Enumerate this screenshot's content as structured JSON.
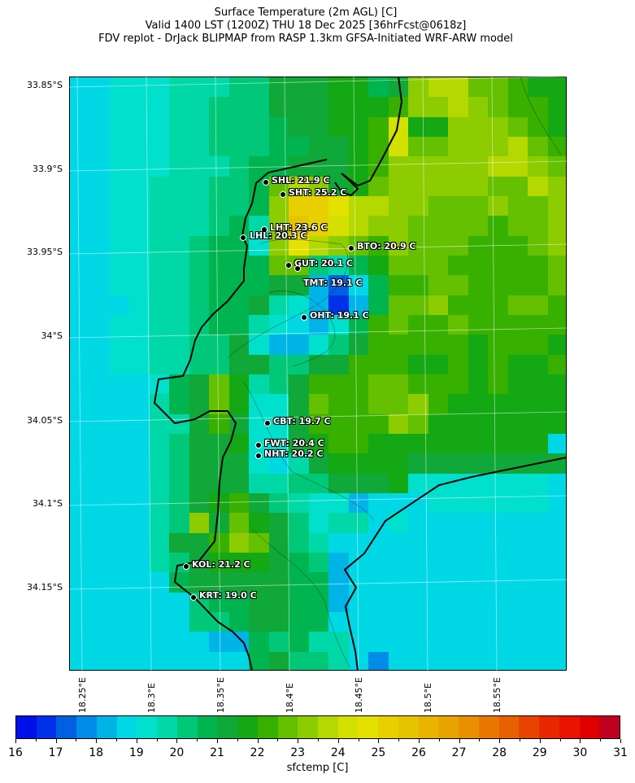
{
  "title": {
    "line1": "Surface Temperature (2m AGL) [C]",
    "line2": "Valid 1400 LST (1200Z) THU 18 Dec 2025 [36hrFcst@0618z]",
    "line3": "FDV replot - DrJack BLIPMAP from RASP 1.3km GFSA-Initiated WRF-ARW model"
  },
  "lat_labels": [
    "33.85°S",
    "33.9°S",
    "33.95°S",
    "34°S",
    "34.05°S",
    "34.1°S",
    "34.15°S"
  ],
  "lon_labels": [
    "18.25°E",
    "18.3°E",
    "18.35°E",
    "18.4°E",
    "18.45°E",
    "18.5°E",
    "18.55°E"
  ],
  "stations": [
    {
      "label": "SHL: 21.9 C"
    },
    {
      "label": "SHT: 25.2 C"
    },
    {
      "label": "LHT: 23.6 C"
    },
    {
      "label": "LHL: 20.3 C"
    },
    {
      "label": "BTO: 20.9 C"
    },
    {
      "label": "GUT: 20.1 C"
    },
    {
      "label": "TMT: 19.1 C"
    },
    {
      "label": "OHT: 19.1 C"
    },
    {
      "label": "CBT: 19.7 C"
    },
    {
      "label": "FWT: 20.4 C"
    },
    {
      "label": "NHT: 20.2 C"
    },
    {
      "label": "KOL: 21.2 C"
    },
    {
      "label": "KRT: 19.0 C"
    }
  ],
  "colorbar": {
    "label": "sfctemp [C]",
    "ticks": [
      "16",
      "17",
      "18",
      "19",
      "20",
      "21",
      "22",
      "23",
      "24",
      "25",
      "26",
      "27",
      "28",
      "29",
      "30",
      "31"
    ],
    "min": 16,
    "max": 31,
    "step": 0.5,
    "colors": [
      "#0010e8",
      "#0030e8",
      "#0060e0",
      "#008ce8",
      "#00b4e8",
      "#00d8e6",
      "#00e0cc",
      "#00d8a8",
      "#00c878",
      "#00b450",
      "#10a838",
      "#14a814",
      "#38b000",
      "#64c000",
      "#8ccc00",
      "#b4d800",
      "#d4e000",
      "#e4e000",
      "#e8d000",
      "#e8c400",
      "#e8b400",
      "#e8a400",
      "#e89000",
      "#e87800",
      "#e86000",
      "#e84400",
      "#e82800",
      "#e81400",
      "#e00000",
      "#c00020"
    ]
  },
  "sfctemp_grid": [
    [
      18.5,
      18.5,
      19,
      19,
      19,
      19.5,
      19.5,
      19.5,
      20,
      20,
      21,
      21,
      21,
      21.5,
      21.5,
      20.5,
      21,
      23,
      23.5,
      23.5,
      22.5,
      22.5,
      22,
      21.5,
      21.5
    ],
    [
      18.5,
      18.5,
      19,
      19,
      19,
      19.5,
      19.5,
      20,
      20,
      20,
      21,
      21,
      21,
      21.5,
      21.5,
      21.5,
      22,
      23,
      23,
      23.5,
      23,
      22.5,
      22,
      22,
      21.5
    ],
    [
      18.5,
      18.5,
      19,
      19,
      19,
      19.5,
      19.5,
      20,
      20,
      20,
      20.5,
      21,
      21,
      21.5,
      21.5,
      22,
      24,
      21.5,
      21.5,
      23,
      23,
      23,
      22.5,
      22,
      21.5
    ],
    [
      18.5,
      18.5,
      19,
      19,
      19,
      19.5,
      19.5,
      20,
      20,
      20,
      20.5,
      20.5,
      21,
      21,
      21.5,
      22,
      24,
      22.5,
      22.5,
      23,
      23,
      23,
      23.5,
      22.5,
      22
    ],
    [
      18.5,
      18.5,
      19,
      19,
      19,
      19.5,
      19.5,
      19.5,
      20,
      20.5,
      20.5,
      21,
      21,
      21,
      21.5,
      22,
      23,
      23,
      23,
      23,
      23,
      23.5,
      23.5,
      23,
      22.5
    ],
    [
      18.5,
      18.5,
      19,
      19,
      19.5,
      19.5,
      19.5,
      20,
      20,
      20.5,
      22.5,
      23.5,
      23,
      21,
      21.5,
      22.5,
      23,
      23,
      23,
      23,
      23,
      22.5,
      22.5,
      23.5,
      23
    ],
    [
      18.5,
      18.5,
      19,
      19,
      19.5,
      19.5,
      19.5,
      20,
      20,
      20.5,
      23,
      25,
      25,
      24.5,
      23.5,
      23.5,
      23,
      23,
      22.5,
      22.5,
      22.5,
      23,
      22.5,
      22.5,
      23
    ],
    [
      18.5,
      18.5,
      19,
      19,
      19.5,
      19.5,
      19.5,
      20,
      20.5,
      19.5,
      23,
      25.5,
      25,
      24,
      23.5,
      23,
      23,
      22.5,
      22.5,
      22.5,
      22.5,
      22,
      22.5,
      22.5,
      23
    ],
    [
      18.5,
      18.5,
      19,
      19,
      19.5,
      19.5,
      20,
      20.5,
      20.5,
      19,
      23,
      24.5,
      23.5,
      23,
      22.5,
      22,
      23,
      22.5,
      22.5,
      22.5,
      22,
      22,
      22,
      22.5,
      23
    ],
    [
      18.5,
      18.5,
      19,
      19,
      19.5,
      19.5,
      20,
      20.5,
      20.5,
      20.5,
      22.5,
      22.5,
      20,
      19.5,
      20.5,
      21.5,
      22.5,
      22.5,
      22.5,
      22,
      22,
      22,
      22,
      22,
      22.5
    ],
    [
      18.5,
      18.5,
      19,
      19,
      19.5,
      19.5,
      20,
      20.5,
      20.5,
      20.5,
      21,
      21,
      18,
      17,
      18.5,
      20.5,
      22,
      22,
      22.5,
      22.5,
      22,
      22,
      22,
      22,
      22.5
    ],
    [
      18.5,
      18.5,
      18.5,
      19,
      19.5,
      19.5,
      20,
      20.5,
      20.5,
      21,
      19.5,
      19,
      18,
      16.5,
      18,
      20.5,
      22.5,
      22.5,
      23,
      22,
      22,
      22,
      22.5,
      22.5,
      22
    ],
    [
      18.5,
      18.5,
      19,
      19,
      19.5,
      19.5,
      20,
      20.5,
      20.5,
      19.5,
      19,
      18.5,
      18,
      19,
      20.5,
      22,
      22.5,
      22,
      22,
      22.5,
      22,
      22,
      22,
      22,
      22
    ],
    [
      18.5,
      18.5,
      19,
      19,
      19.5,
      19.5,
      20,
      20,
      21,
      19,
      18,
      18,
      19,
      20,
      21,
      22,
      22,
      22,
      22,
      22,
      21.5,
      22,
      22,
      22,
      21.5
    ],
    [
      18.5,
      18.5,
      19,
      19,
      19.5,
      19.5,
      20,
      20,
      21,
      21,
      20,
      20,
      21,
      21,
      22,
      22,
      22,
      21.5,
      21.5,
      22,
      21.5,
      22,
      21.5,
      21.5,
      22
    ],
    [
      18.5,
      18.5,
      18.5,
      18.5,
      19,
      20.5,
      21,
      22.5,
      21.5,
      19.5,
      20,
      21,
      22,
      22,
      22,
      22.5,
      22.5,
      22,
      22,
      22,
      21.5,
      22,
      21.5,
      21.5,
      21.5
    ],
    [
      18.5,
      18.5,
      18.5,
      18.5,
      19.5,
      20.5,
      21,
      22.5,
      21.5,
      19,
      19,
      21,
      22.5,
      22,
      22,
      22.5,
      22.5,
      23,
      22,
      21.5,
      21.5,
      21.5,
      21.5,
      21.5,
      21.5
    ],
    [
      18.5,
      18.5,
      18.5,
      18.5,
      19.5,
      19.5,
      21,
      22,
      21,
      19,
      19,
      21,
      22,
      22,
      22,
      22,
      23,
      22.5,
      21.5,
      21.5,
      21.5,
      21.5,
      21.5,
      21.5,
      21.5
    ],
    [
      18.5,
      18.5,
      18.5,
      18.5,
      19.5,
      20,
      21,
      21,
      21.5,
      19,
      19,
      21,
      21.5,
      22,
      22,
      21.5,
      21.5,
      21.5,
      21.5,
      21.5,
      21.5,
      21.5,
      21.5,
      21.5,
      18.5
    ],
    [
      18.5,
      18.5,
      18.5,
      18.5,
      19.5,
      20,
      21,
      21,
      21,
      19,
      18.5,
      19.5,
      21,
      21.5,
      21.5,
      21.5,
      21.5,
      21,
      21,
      21,
      21,
      21,
      21,
      21,
      21
    ],
    [
      18.5,
      18.5,
      18.5,
      18.5,
      19.5,
      20,
      21,
      21,
      21,
      19.5,
      19.5,
      20,
      20,
      21,
      21,
      21,
      21.5,
      19,
      19,
      19,
      19,
      19,
      19,
      19,
      18.5
    ],
    [
      18.5,
      18.5,
      18.5,
      18.5,
      19.5,
      20,
      21,
      21.5,
      22,
      21,
      20,
      19.5,
      19,
      19,
      18,
      18.5,
      18.5,
      18.5,
      19,
      19,
      19,
      19,
      19,
      19,
      18.5
    ],
    [
      18.5,
      18.5,
      18.5,
      18.5,
      19.5,
      20,
      23,
      21,
      22.5,
      21.5,
      21,
      20,
      19,
      19.5,
      19.5,
      18.5,
      19,
      18.5,
      18.5,
      18.5,
      18.5,
      18.5,
      18.5,
      18.5,
      18.5
    ],
    [
      18.5,
      18.5,
      18.5,
      18.5,
      19.5,
      21,
      21,
      22,
      23,
      22.5,
      21,
      20,
      19.5,
      18.5,
      18.5,
      18.5,
      18.5,
      18.5,
      18.5,
      18.5,
      18.5,
      18.5,
      18.5,
      18.5,
      18.5
    ],
    [
      18.5,
      18.5,
      18.5,
      18.5,
      19.5,
      20,
      21,
      21.5,
      21.5,
      21.5,
      21,
      20.5,
      20,
      18,
      18.5,
      18.5,
      18.5,
      18.5,
      18.5,
      18.5,
      18.5,
      18.5,
      18.5,
      18.5,
      18.5
    ],
    [
      18.5,
      18.5,
      18.5,
      18.5,
      18.5,
      20.5,
      21,
      21,
      21,
      21,
      21,
      20.5,
      20.5,
      18,
      18.5,
      18.5,
      18.5,
      18.5,
      18.5,
      18.5,
      18.5,
      18.5,
      18.5,
      18.5,
      18.5
    ],
    [
      18.5,
      18.5,
      18.5,
      18.5,
      18.5,
      18.5,
      20,
      20.5,
      20.5,
      21,
      21,
      20.5,
      20.5,
      18,
      18.5,
      18.5,
      18.5,
      18.5,
      18.5,
      18.5,
      18.5,
      18.5,
      18.5,
      18.5,
      18.5
    ],
    [
      18.5,
      18.5,
      18.5,
      18.5,
      18.5,
      18.5,
      20,
      20,
      20.5,
      21,
      21,
      20.5,
      20.5,
      18.5,
      18.5,
      18.5,
      18.5,
      18.5,
      18.5,
      18.5,
      18.5,
      18.5,
      18.5,
      18.5,
      18.5
    ],
    [
      18.5,
      18.5,
      18.5,
      18.5,
      18.5,
      18.5,
      18.5,
      18,
      18,
      20.5,
      20,
      20.5,
      19.5,
      19.5,
      18.5,
      18.5,
      18.5,
      18.5,
      18.5,
      18.5,
      18.5,
      18.5,
      18.5,
      18.5,
      18.5
    ],
    [
      18.5,
      18.5,
      18.5,
      18.5,
      18.5,
      18.5,
      18.5,
      18.5,
      18.5,
      20.5,
      21,
      20,
      20,
      19.5,
      18.5,
      17.5,
      18.5,
      18.5,
      18.5,
      18.5,
      18.5,
      18.5,
      18.5,
      18.5,
      18.5
    ]
  ]
}
